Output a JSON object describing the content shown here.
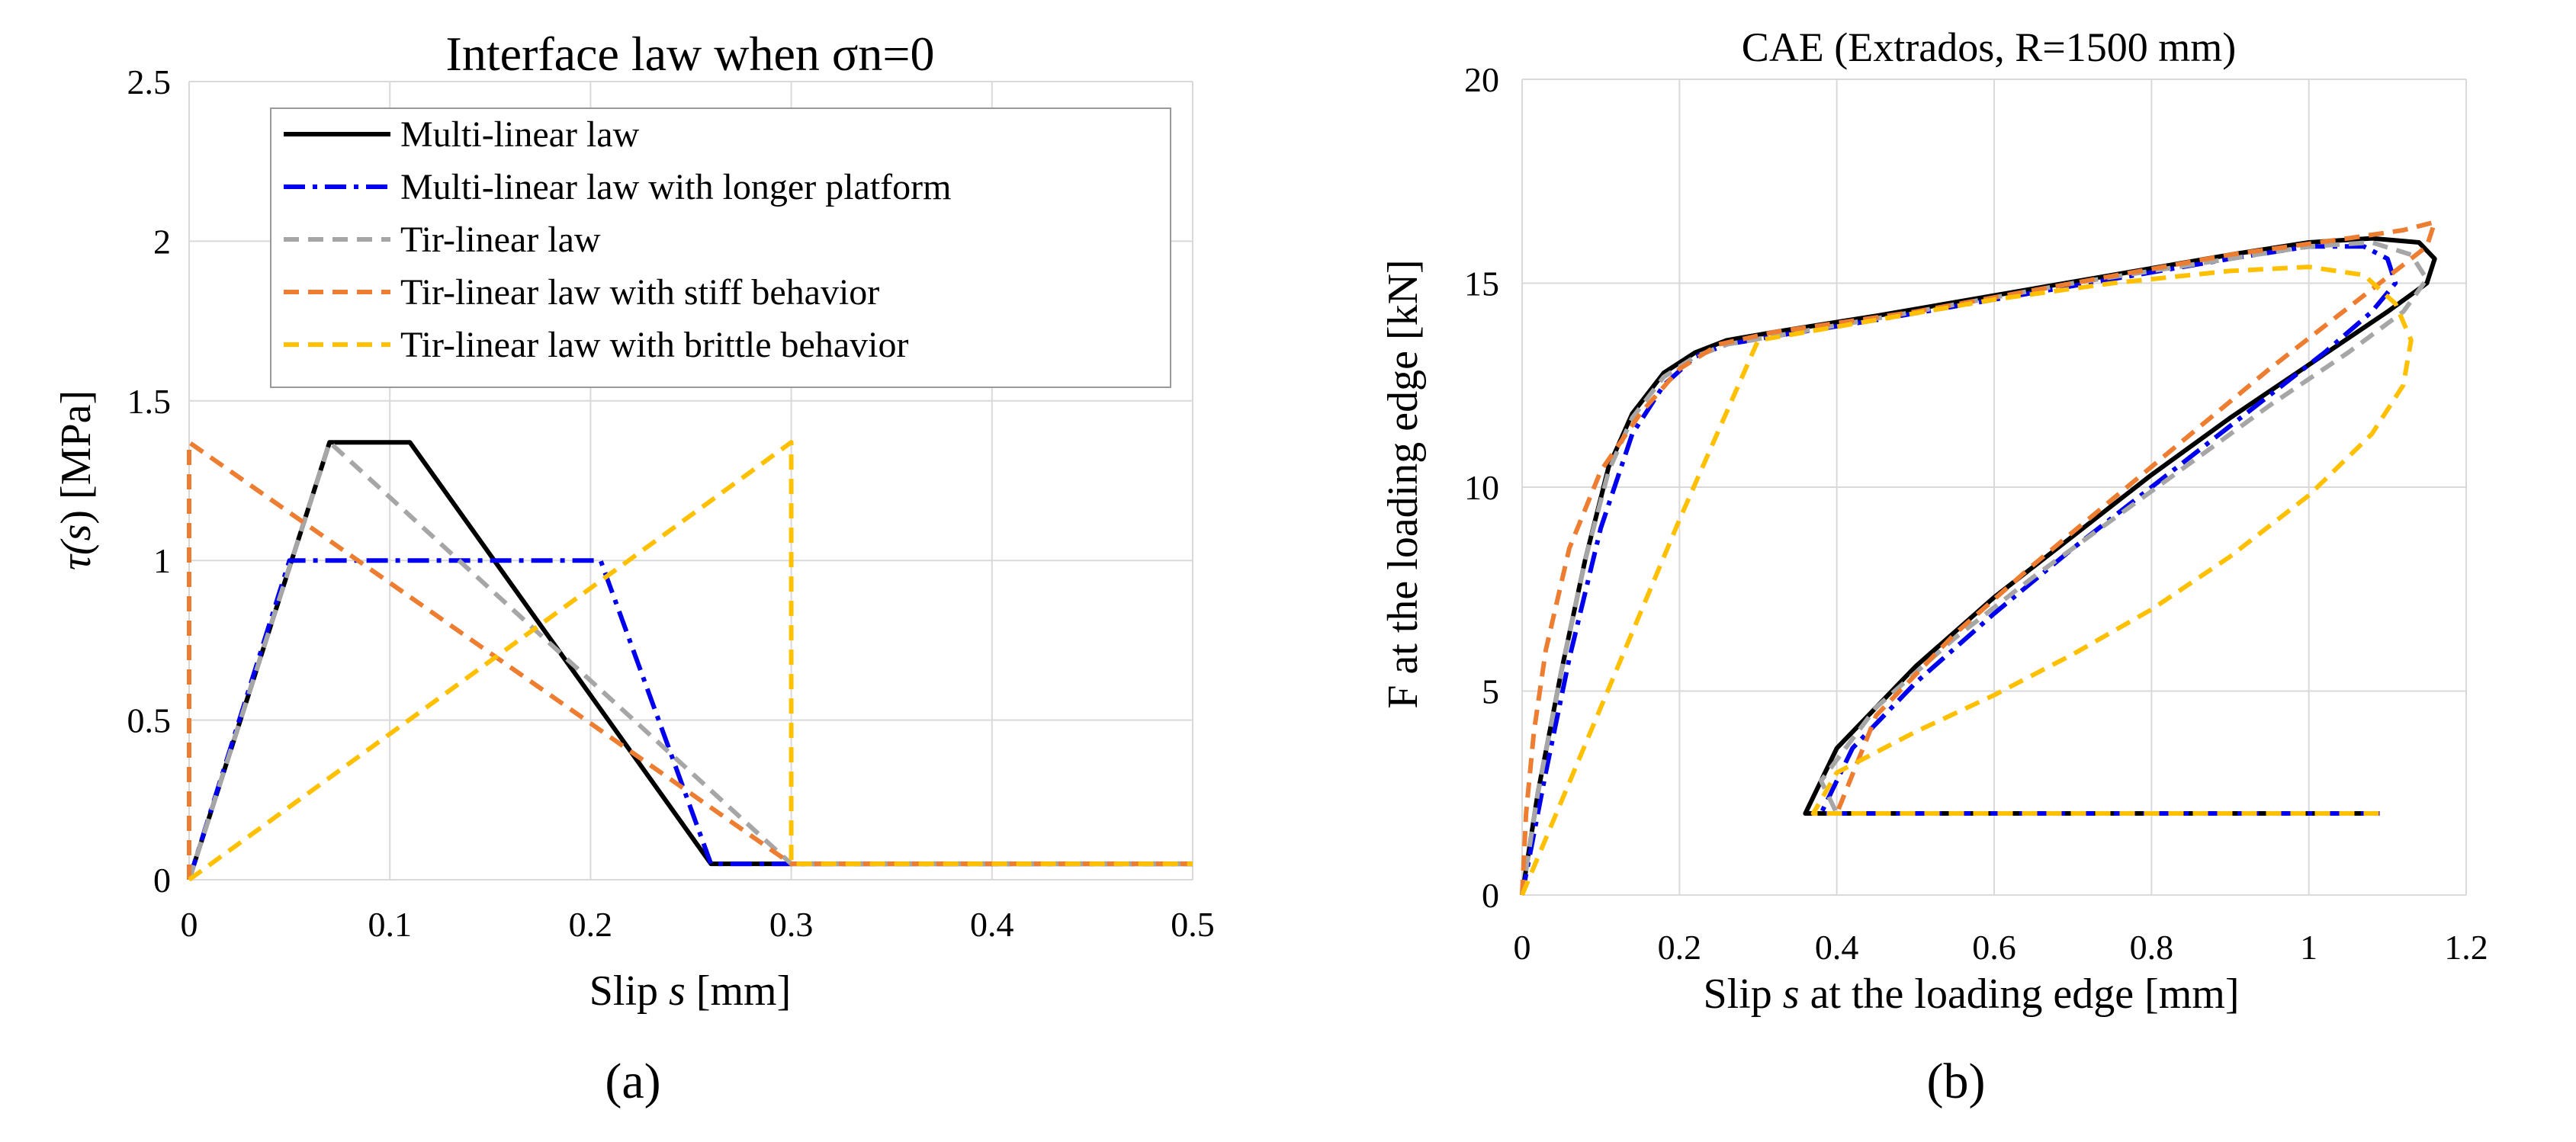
{
  "panels": {
    "a": "(a)",
    "b": "(b)"
  },
  "chart_data": [
    {
      "type": "line",
      "title": "Interface law when σn=0",
      "xlabel": "Slip s [mm]",
      "xlabel_parts": {
        "prefix": "Slip ",
        "italic": "s",
        "suffix": " [mm]"
      },
      "ylabel": "τ(s) [MPa]",
      "ylabel_parts": {
        "tau": "τ(",
        "s": "s",
        "rest": ") [MPa]"
      },
      "xlim": [
        0,
        0.5
      ],
      "ylim": [
        0,
        2.5
      ],
      "xticks": [
        0,
        0.1,
        0.2,
        0.3,
        0.4,
        0.5
      ],
      "xtick_labels": [
        "0",
        "0.1",
        "0.2",
        "0.3",
        "0.4",
        "0.5"
      ],
      "yticks": [
        0,
        0.5,
        1,
        1.5,
        2,
        2.5
      ],
      "ytick_labels": [
        "0",
        "0.5",
        "1",
        "1.5",
        "2",
        "2.5"
      ],
      "grid": true,
      "legend_position": "top-right",
      "series": [
        {
          "name": "Multi-linear law",
          "color": "#000000",
          "dash": "solid",
          "x": [
            0,
            0.07,
            0.11,
            0.26,
            0.5
          ],
          "y": [
            0,
            1.37,
            1.37,
            0.05,
            0.05
          ]
        },
        {
          "name": "Multi-linear law with longer platform",
          "color": "#0000ee",
          "dash": "dashdot",
          "x": [
            0,
            0.05,
            0.205,
            0.26,
            0.5
          ],
          "y": [
            0,
            1,
            1,
            0.05,
            0.05
          ]
        },
        {
          "name": "Tir-linear law",
          "color": "#a6a6a6",
          "dash": "dash",
          "x": [
            0,
            0.07,
            0.3,
            0.5
          ],
          "y": [
            0,
            1.37,
            0.05,
            0.05
          ]
        },
        {
          "name": "Tir-linear law with stiff behavior",
          "color": "#ed7d31",
          "dash": "dash",
          "x": [
            0,
            0,
            0.3,
            0.5
          ],
          "y": [
            0,
            1.37,
            0.05,
            0.05
          ]
        },
        {
          "name": "Tir-linear law with brittle behavior",
          "color": "#ffc000",
          "dash": "dash",
          "x": [
            0,
            0.3,
            0.3,
            0.5
          ],
          "y": [
            0,
            1.37,
            0.05,
            0.05
          ]
        }
      ]
    },
    {
      "type": "line",
      "title": "CAE (Extrados, R=1500 mm)",
      "xlabel": "Slip s at the loading edge [mm]",
      "xlabel_parts": {
        "prefix": "Slip ",
        "italic": "s",
        "suffix": " at the loading edge [mm]"
      },
      "ylabel": "F at the loading edge [kN]",
      "xlim": [
        0,
        1.2
      ],
      "ylim": [
        0,
        20
      ],
      "xticks": [
        0,
        0.2,
        0.4,
        0.6,
        0.8,
        1,
        1.2
      ],
      "xtick_labels": [
        "0",
        "0.2",
        "0.4",
        "0.6",
        "0.8",
        "1",
        "1.2"
      ],
      "yticks": [
        0,
        5,
        10,
        15,
        20
      ],
      "ytick_labels": [
        "0",
        "5",
        "10",
        "15",
        "20"
      ],
      "grid": true,
      "series": [
        {
          "name": "Multi-linear law",
          "color": "#000000",
          "dash": "solid",
          "x": [
            0,
            0.02,
            0.05,
            0.08,
            0.11,
            0.14,
            0.18,
            0.22,
            0.26,
            0.32,
            0.45,
            0.6,
            0.75,
            0.9,
            1.0,
            1.08,
            1.14,
            1.16,
            1.15,
            1.1,
            1.0,
            0.9,
            0.8,
            0.7,
            0.6,
            0.5,
            0.4,
            0.36,
            0.37,
            0.5,
            0.7,
            0.9,
            1.09
          ],
          "y": [
            0,
            2.5,
            5.5,
            8.2,
            10.5,
            11.8,
            12.8,
            13.3,
            13.6,
            13.8,
            14.2,
            14.7,
            15.2,
            15.7,
            16.0,
            16.1,
            16.0,
            15.6,
            15.0,
            14.3,
            13.0,
            11.7,
            10.3,
            8.8,
            7.3,
            5.6,
            3.6,
            2.0,
            2.0,
            2.0,
            2.0,
            2.0,
            2.0
          ]
        },
        {
          "name": "Multi-linear law with longer platform",
          "color": "#0000ee",
          "dash": "dashdot",
          "x": [
            0,
            0.03,
            0.06,
            0.1,
            0.14,
            0.18,
            0.22,
            0.26,
            0.32,
            0.45,
            0.6,
            0.75,
            0.9,
            1.0,
            1.07,
            1.1,
            1.11,
            1.08,
            1.02,
            0.92,
            0.8,
            0.7,
            0.6,
            0.5,
            0.42,
            0.38,
            0.4,
            0.6,
            0.8,
            1.0,
            1.09
          ],
          "y": [
            0,
            3.0,
            5.8,
            9.0,
            11.3,
            12.5,
            13.2,
            13.5,
            13.7,
            14.1,
            14.6,
            15.1,
            15.6,
            15.9,
            15.9,
            15.6,
            15.0,
            14.3,
            13.3,
            11.8,
            10.0,
            8.5,
            6.9,
            5.2,
            3.6,
            2.0,
            2.0,
            2.0,
            2.0,
            2.0,
            2.0
          ]
        },
        {
          "name": "Tir-linear law",
          "color": "#a6a6a6",
          "dash": "dash",
          "x": [
            0,
            0.02,
            0.05,
            0.08,
            0.11,
            0.14,
            0.18,
            0.22,
            0.26,
            0.32,
            0.5,
            0.7,
            0.9,
            1.0,
            1.08,
            1.13,
            1.15,
            1.12,
            1.05,
            0.95,
            0.85,
            0.75,
            0.65,
            0.55,
            0.45,
            0.38,
            0.4
          ],
          "y": [
            0,
            2.5,
            5.5,
            8.2,
            10.4,
            11.7,
            12.7,
            13.2,
            13.5,
            13.7,
            14.3,
            15.0,
            15.6,
            15.9,
            16.0,
            15.7,
            15.1,
            14.3,
            13.3,
            12.0,
            10.6,
            9.2,
            7.8,
            6.3,
            4.6,
            2.8,
            2.0
          ]
        },
        {
          "name": "Tir-linear law with stiff behavior",
          "color": "#ed7d31",
          "dash": "dash",
          "x": [
            0,
            0.005,
            0.015,
            0.03,
            0.06,
            0.1,
            0.15,
            0.2,
            0.25,
            0.32,
            0.5,
            0.7,
            0.9,
            1.05,
            1.12,
            1.16,
            1.15,
            1.05,
            0.95,
            0.85,
            0.75,
            0.65,
            0.55,
            0.45,
            0.4
          ],
          "y": [
            0,
            2.0,
            4.0,
            6.0,
            8.5,
            10.4,
            11.8,
            12.9,
            13.5,
            13.8,
            14.3,
            15.0,
            15.7,
            16.1,
            16.3,
            16.5,
            15.9,
            14.4,
            12.9,
            11.3,
            9.7,
            8.1,
            6.4,
            4.4,
            2.0
          ]
        },
        {
          "name": "Tir-linear law with brittle behavior",
          "color": "#ffc000",
          "dash": "dash",
          "x": [
            0,
            0.1,
            0.2,
            0.3,
            0.45,
            0.6,
            0.75,
            0.9,
            1.0,
            1.07,
            1.11,
            1.13,
            1.12,
            1.08,
            1.0,
            0.9,
            0.8,
            0.7,
            0.6,
            0.5,
            0.4,
            0.37,
            0.4,
            0.6,
            0.8,
            1.09
          ],
          "y": [
            0,
            4.6,
            9.2,
            13.6,
            14.1,
            14.6,
            15.0,
            15.3,
            15.4,
            15.2,
            14.5,
            13.6,
            12.5,
            11.3,
            9.8,
            8.3,
            7.0,
            5.9,
            4.9,
            4.0,
            3.0,
            2.0,
            2.0,
            2.0,
            2.0,
            2.0
          ]
        }
      ]
    }
  ]
}
